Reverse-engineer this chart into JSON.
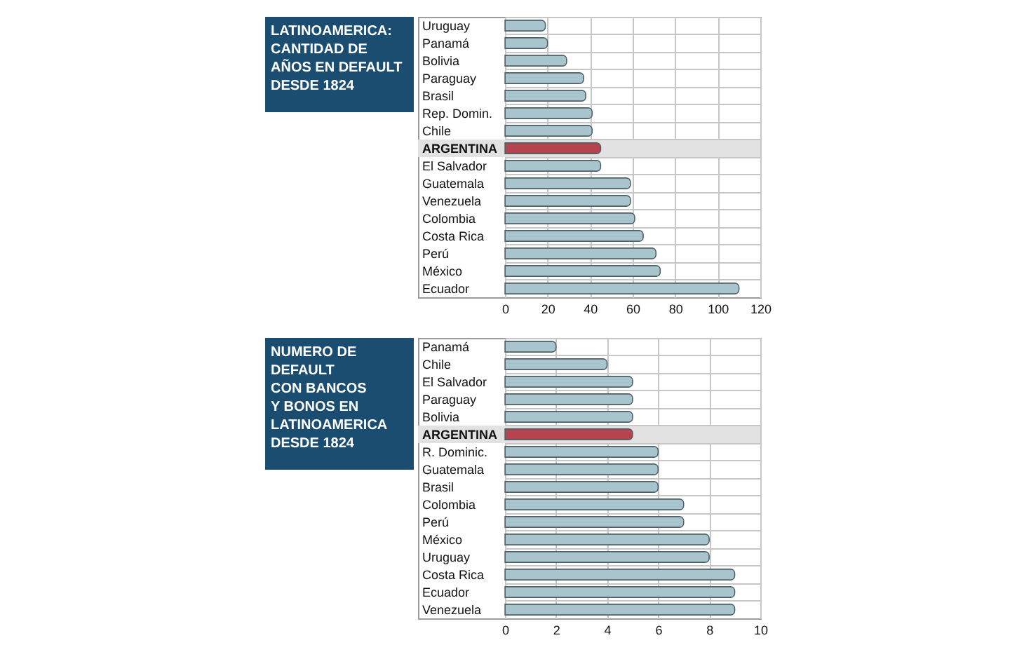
{
  "chart_data": [
    {
      "type": "bar",
      "orientation": "horizontal",
      "title": "LATINOAMERICA: CANTIDAD DE AÑOS EN DEFAULT DESDE 1824",
      "categories": [
        "Uruguay",
        "Panamá",
        "Bolivia",
        "Paraguay",
        "Brasil",
        "Rep. Domin.",
        "Chile",
        "ARGENTINA",
        "El Salvador",
        "Guatemala",
        "Venezuela",
        "Colombia",
        "Costa Rica",
        "Perú",
        "México",
        "Ecuador"
      ],
      "values": [
        19,
        20,
        29,
        37,
        38,
        41,
        41,
        45,
        45,
        59,
        59,
        61,
        65,
        71,
        73,
        110
      ],
      "colors": [
        "#a8c4cc",
        "#a8c4cc",
        "#a8c4cc",
        "#a8c4cc",
        "#a8c4cc",
        "#a8c4cc",
        "#a8c4cc",
        "#b5444f",
        "#a8c4cc",
        "#a8c4cc",
        "#a8c4cc",
        "#a8c4cc",
        "#a8c4cc",
        "#a8c4cc",
        "#a8c4cc",
        "#a8c4cc"
      ],
      "xlim": [
        0,
        120
      ],
      "xticks": [
        0,
        20,
        40,
        60,
        80,
        100,
        120
      ],
      "grid": true,
      "bands": [
        {
          "axis": "y",
          "from": "ARGENTINA",
          "to": "ARGENTINA",
          "color": "#e2e2e2"
        }
      ]
    },
    {
      "type": "bar",
      "orientation": "horizontal",
      "title": "NUMERO DE DEFAULT CON BANCOS Y BONOS EN LATINOAMERICA DESDE 1824",
      "categories": [
        "Panamá",
        "Chile",
        "El Salvador",
        "Paraguay",
        "Bolivia",
        "ARGENTINA",
        "R. Dominic.",
        "Guatemala",
        "Brasil",
        "Colombia",
        "Perú",
        "México",
        "Uruguay",
        "Costa Rica",
        "Ecuador",
        "Venezuela"
      ],
      "values": [
        2,
        4,
        5,
        5,
        5,
        5,
        6,
        6,
        6,
        7,
        7,
        8,
        8,
        9,
        9,
        9
      ],
      "colors": [
        "#a8c4cc",
        "#a8c4cc",
        "#a8c4cc",
        "#a8c4cc",
        "#a8c4cc",
        "#b5444f",
        "#a8c4cc",
        "#a8c4cc",
        "#a8c4cc",
        "#a8c4cc",
        "#a8c4cc",
        "#a8c4cc",
        "#a8c4cc",
        "#a8c4cc",
        "#a8c4cc",
        "#a8c4cc"
      ],
      "xlim": [
        0,
        10
      ],
      "xticks": [
        0,
        2,
        4,
        6,
        8,
        10
      ],
      "grid": true,
      "bands": [
        {
          "axis": "y",
          "from": "ARGENTINA",
          "to": "ARGENTINA",
          "color": "#e2e2e2"
        }
      ]
    }
  ]
}
